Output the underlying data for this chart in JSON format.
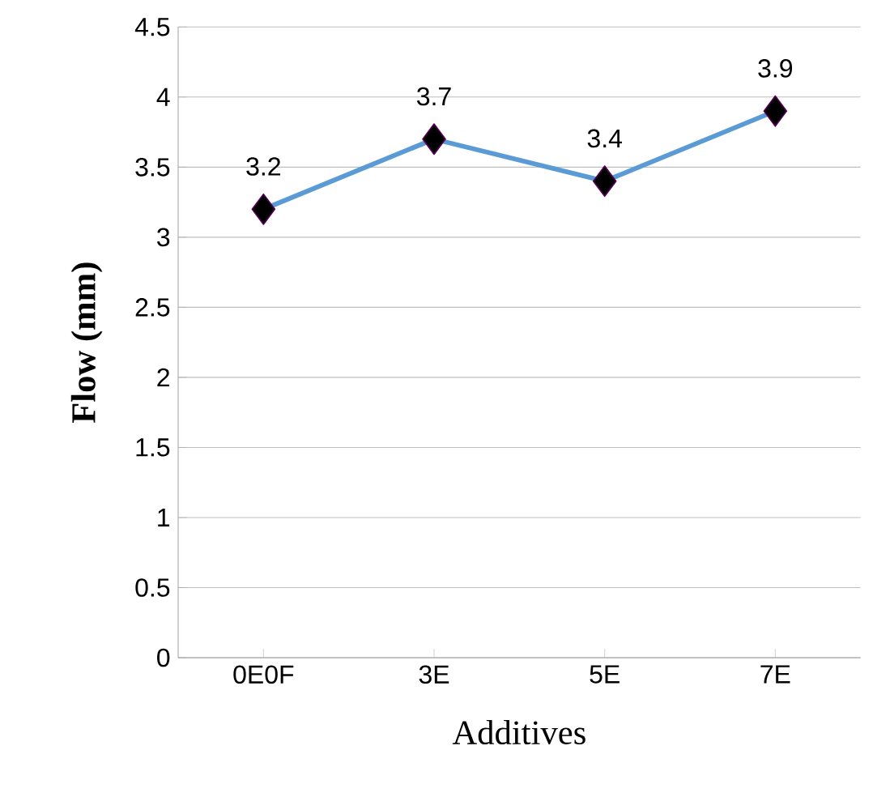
{
  "chart_data": {
    "type": "line",
    "xlabel": "Additives",
    "ylabel": "Flow (mm)",
    "categories": [
      "0E0F",
      "3E",
      "5E",
      "7E"
    ],
    "series": [
      {
        "color": "#5b9bd5",
        "values": [
          3.2,
          3.7,
          3.4,
          3.9
        ]
      }
    ],
    "ylim": [
      0,
      4.5
    ],
    "yticks": [
      0,
      0.5,
      1,
      1.5,
      2,
      2.5,
      3,
      3.5,
      4,
      4.5
    ],
    "grid": "y",
    "marker": "diamond",
    "line_style": "solid",
    "data_labels": true
  }
}
